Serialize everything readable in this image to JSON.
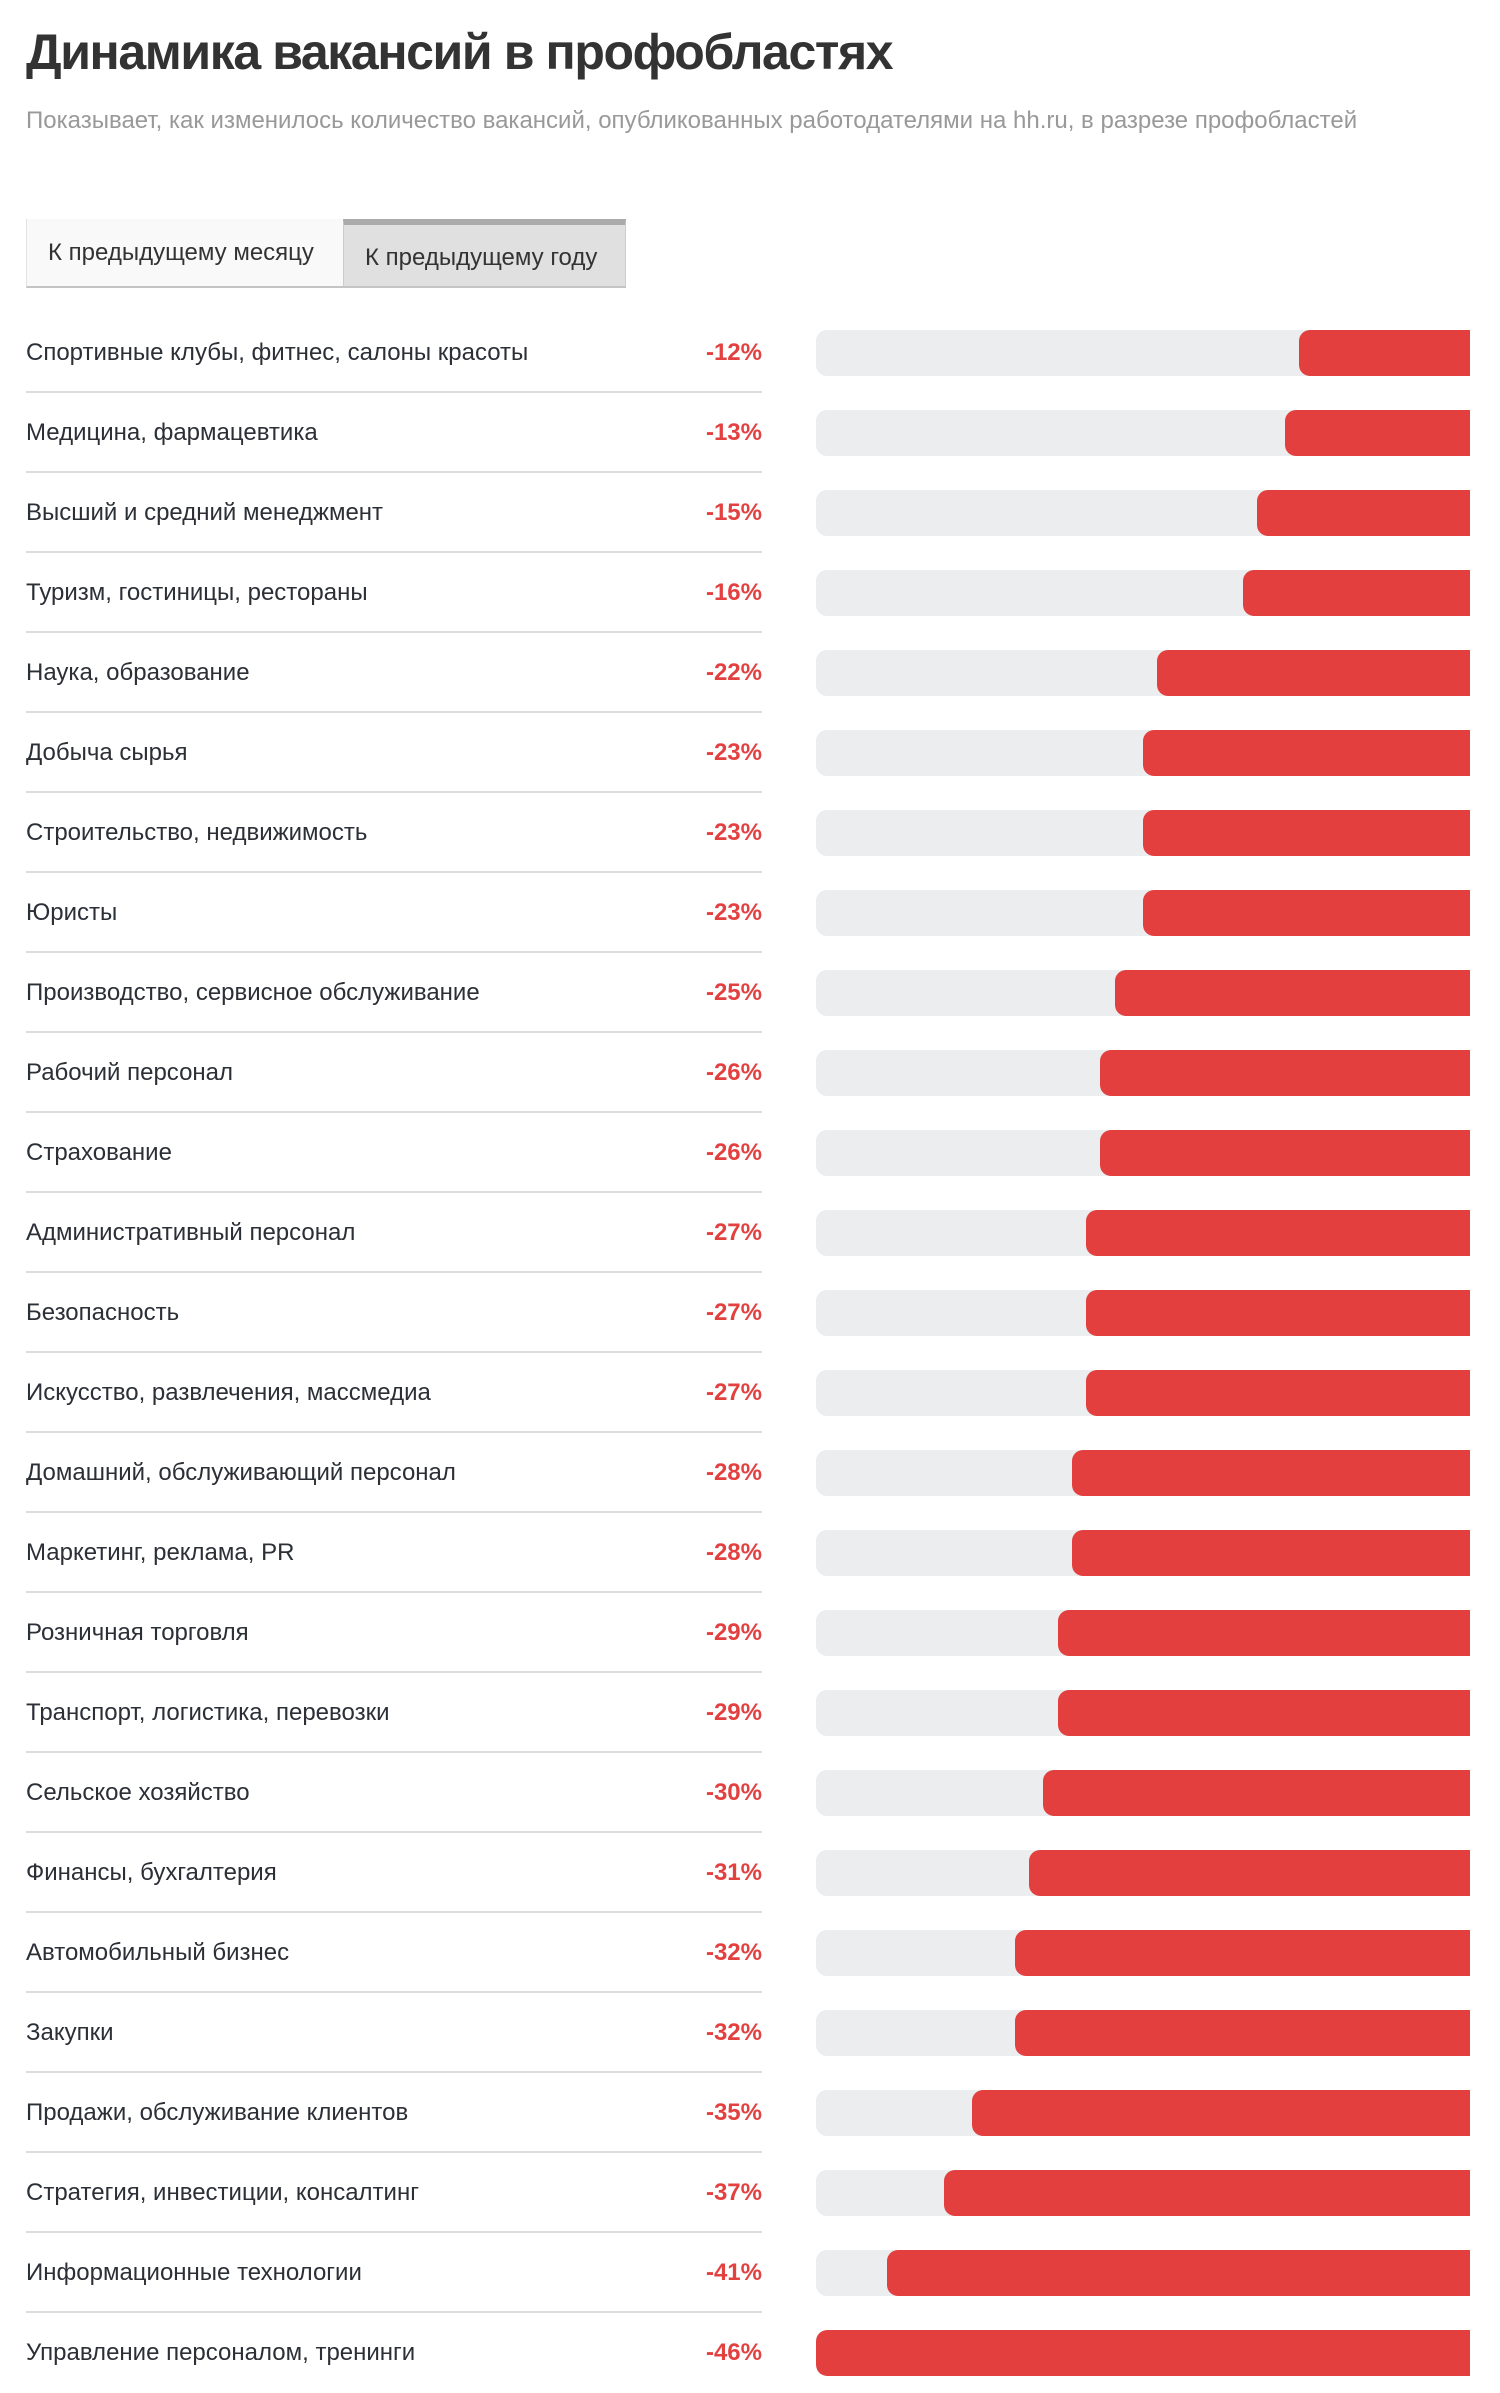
{
  "header": {
    "title": "Динамика вакансий в профобластях",
    "subtitle": "Показывает, как изменилось количество вакансий, опубликованных работодателями на hh.ru, в разрезе профобластей"
  },
  "tabs": [
    {
      "label": "К предыдущему месяцу",
      "active": false
    },
    {
      "label": "К предыдущему году",
      "active": true
    }
  ],
  "colors": {
    "bar_fill": "#e33f3f",
    "bar_track": "#ecedef",
    "percent_text": "#e34040"
  },
  "chart_data": {
    "type": "bar",
    "orientation": "horizontal",
    "title": "Динамика вакансий в профобластях",
    "subtitle": "Показывает, как изменилось количество вакансий, опубликованных работодателями на hh.ru, в разрезе профобластей",
    "unit": "%",
    "xlim": [
      -46,
      0
    ],
    "grid": false,
    "legend": "none",
    "categories": [
      "Спортивные клубы, фитнес, салоны красоты",
      "Медицина, фармацевтика",
      "Высший и средний менеджмент",
      "Туризм, гостиницы, рестораны",
      "Наука, образование",
      "Добыча сырья",
      "Строительство, недвижимость",
      "Юристы",
      "Производство, сервисное обслуживание",
      "Рабочий персонал",
      "Страхование",
      "Административный персонал",
      "Безопасность",
      "Искусство, развлечения, массмедиа",
      "Домашний, обслуживающий персонал",
      "Маркетинг, реклама, PR",
      "Розничная торговля",
      "Транспорт, логистика, перевозки",
      "Сельское хозяйство",
      "Финансы, бухгалтерия",
      "Автомобильный бизнес",
      "Закупки",
      "Продажи, обслуживание клиентов",
      "Стратегия, инвестиции, консалтинг",
      "Информационные технологии",
      "Управление персоналом, тренинги"
    ],
    "values": [
      -12,
      -13,
      -15,
      -16,
      -22,
      -23,
      -23,
      -23,
      -25,
      -26,
      -26,
      -27,
      -27,
      -27,
      -28,
      -28,
      -29,
      -29,
      -30,
      -31,
      -32,
      -32,
      -35,
      -37,
      -41,
      -46
    ],
    "labels": [
      "-12%",
      "-13%",
      "-15%",
      "-16%",
      "-22%",
      "-23%",
      "-23%",
      "-23%",
      "-25%",
      "-26%",
      "-26%",
      "-27%",
      "-27%",
      "-27%",
      "-28%",
      "-28%",
      "-29%",
      "-29%",
      "-30%",
      "-31%",
      "-32%",
      "-32%",
      "-35%",
      "-37%",
      "-41%",
      "-46%"
    ]
  }
}
